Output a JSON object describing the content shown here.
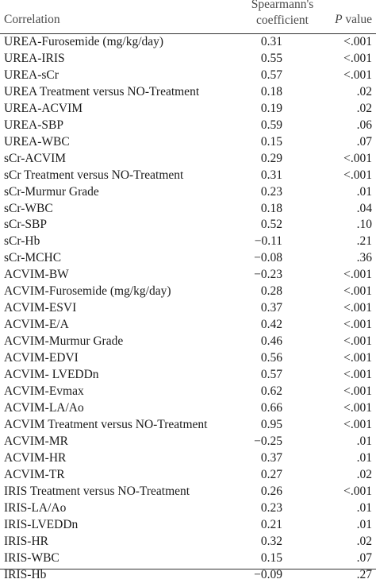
{
  "table": {
    "header": {
      "correlation": "Correlation",
      "coefficient_line1": "Spearmann's",
      "coefficient_line2": "coefficient",
      "p_italic": "P",
      "p_rest": " value"
    },
    "rows": [
      {
        "name": "UREA-Furosemide (mg/kg/day)",
        "coef": "0.31",
        "p": "<.001"
      },
      {
        "name": "UREA-IRIS",
        "coef": "0.55",
        "p": "<.001"
      },
      {
        "name": "UREA-sCr",
        "coef": "0.57",
        "p": "<.001"
      },
      {
        "name": "UREA Treatment versus NO-Treatment",
        "coef": "0.18",
        "p": ".02"
      },
      {
        "name": "UREA-ACVIM",
        "coef": "0.19",
        "p": ".02"
      },
      {
        "name": "UREA-SBP",
        "coef": "0.59",
        "p": ".06"
      },
      {
        "name": "UREA-WBC",
        "coef": "0.15",
        "p": ".07"
      },
      {
        "name": "sCr-ACVIM",
        "coef": "0.29",
        "p": "<.001"
      },
      {
        "name": "sCr Treatment versus NO-Treatment",
        "coef": "0.31",
        "p": "<.001"
      },
      {
        "name": "sCr-Murmur Grade",
        "coef": "0.23",
        "p": ".01"
      },
      {
        "name": "sCr-WBC",
        "coef": "0.18",
        "p": ".04"
      },
      {
        "name": "sCr-SBP",
        "coef": "0.52",
        "p": ".10"
      },
      {
        "name": "sCr-Hb",
        "coef": "−0.11",
        "p": ".21"
      },
      {
        "name": "sCr-MCHC",
        "coef": "−0.08",
        "p": ".36"
      },
      {
        "name": "ACVIM-BW",
        "coef": "−0.23",
        "p": "<.001"
      },
      {
        "name": "ACVIM-Furosemide (mg/kg/day)",
        "coef": "0.28",
        "p": "<.001"
      },
      {
        "name": "ACVIM-ESVI",
        "coef": "0.37",
        "p": "<.001"
      },
      {
        "name": "ACVIM-E/A",
        "coef": "0.42",
        "p": "<.001"
      },
      {
        "name": "ACVIM-Murmur Grade",
        "coef": "0.46",
        "p": "<.001"
      },
      {
        "name": "ACVIM-EDVI",
        "coef": "0.56",
        "p": "<.001"
      },
      {
        "name": "ACVIM- LVEDDn",
        "coef": "0.57",
        "p": "<.001"
      },
      {
        "name": "ACVIM-Evmax",
        "coef": "0.62",
        "p": "<.001"
      },
      {
        "name": "ACVIM-LA/Ao",
        "coef": "0.66",
        "p": "<.001"
      },
      {
        "name": "ACVIM Treatment versus NO-Treatment",
        "coef": "0.95",
        "p": "<.001"
      },
      {
        "name": "ACVIM-MR",
        "coef": "−0.25",
        "p": ".01"
      },
      {
        "name": "ACVIM-HR",
        "coef": "0.37",
        "p": ".01"
      },
      {
        "name": "ACVIM-TR",
        "coef": "0.27",
        "p": ".02"
      },
      {
        "name": "IRIS Treatment versus NO-Treatment",
        "coef": "0.26",
        "p": "<.001"
      },
      {
        "name": "IRIS-LA/Ao",
        "coef": "0.23",
        "p": ".01"
      },
      {
        "name": "IRIS-LVEDDn",
        "coef": "0.21",
        "p": ".01"
      },
      {
        "name": "IRIS-HR",
        "coef": "0.32",
        "p": ".02"
      },
      {
        "name": "IRIS-WBC",
        "coef": "0.15",
        "p": ".07"
      },
      {
        "name": "IRIS-Hb",
        "coef": "−0.09",
        "p": ".27"
      }
    ]
  }
}
